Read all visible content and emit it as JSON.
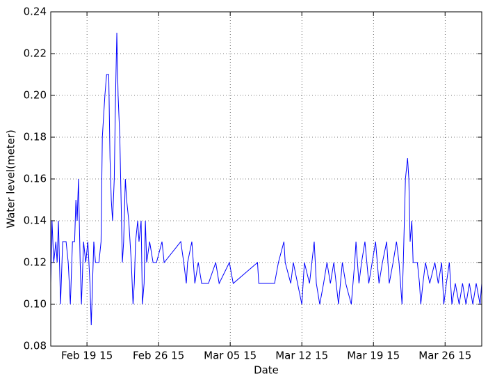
{
  "chart_data": {
    "type": "line",
    "x_label": "Date",
    "y_label": "Water level(meter)",
    "xlim": [
      "2015-02-15T11:00",
      "2015-03-29T14:00"
    ],
    "xticks": [
      {
        "value": "2015-02-19T00:00",
        "label": "Feb 19 15"
      },
      {
        "value": "2015-02-26T00:00",
        "label": "Feb 26 15"
      },
      {
        "value": "2015-03-05T00:00",
        "label": "Mar 05 15"
      },
      {
        "value": "2015-03-12T00:00",
        "label": "Mar 12 15"
      },
      {
        "value": "2015-03-19T00:00",
        "label": "Mar 19 15"
      },
      {
        "value": "2015-03-26T00:00",
        "label": "Mar 26 15"
      }
    ],
    "ylim": [
      0.08,
      0.24
    ],
    "yticks": [
      0.08,
      {
        "value": 0.1,
        "label": "0.10"
      },
      0.12,
      0.14,
      0.16,
      0.18,
      {
        "value": 0.2,
        "label": "0.20"
      },
      0.22,
      0.24
    ],
    "grid": true,
    "x": [
      "2015-02-15T11:00",
      "2015-02-15T14:00",
      "2015-02-15T18:00",
      "2015-02-15T23:00",
      "2015-02-16T02:00",
      "2015-02-16T05:00",
      "2015-02-16T10:00",
      "2015-02-16T15:00",
      "2015-02-16T23:00",
      "2015-02-17T04:00",
      "2015-02-17T09:00",
      "2015-02-17T14:00",
      "2015-02-17T19:00",
      "2015-02-17T22:00",
      "2015-02-18T01:00",
      "2015-02-18T04:00",
      "2015-02-18T08:00",
      "2015-02-18T11:00",
      "2015-02-18T16:00",
      "2015-02-18T21:00",
      "2015-02-19T02:00",
      "2015-02-19T07:00",
      "2015-02-19T10:00",
      "2015-02-19T13:00",
      "2015-02-19T16:00",
      "2015-02-19T20:00",
      "2015-02-20T04:00",
      "2015-02-20T09:00",
      "2015-02-20T12:00",
      "2015-02-20T15:00",
      "2015-02-20T18:00",
      "2015-02-20T22:00",
      "2015-02-21T03:00",
      "2015-02-21T06:00",
      "2015-02-21T09:00",
      "2015-02-21T12:00",
      "2015-02-21T16:00",
      "2015-02-21T19:00",
      "2015-02-21T22:00",
      "2015-02-22T01:00",
      "2015-02-22T05:00",
      "2015-02-22T08:00",
      "2015-02-22T11:00",
      "2015-02-22T14:00",
      "2015-02-22T18:00",
      "2015-02-22T21:00",
      "2015-02-23T02:00",
      "2015-02-23T05:00",
      "2015-02-23T08:00",
      "2015-02-23T12:00",
      "2015-02-23T15:00",
      "2015-02-23T18:00",
      "2015-02-23T23:00",
      "2015-02-24T02:00",
      "2015-02-24T07:00",
      "2015-02-24T10:00",
      "2015-02-24T14:00",
      "2015-02-24T17:00",
      "2015-02-24T20:00",
      "2015-02-25T03:00",
      "2015-02-25T11:00",
      "2015-02-25T19:00",
      "2015-02-26T08:00",
      "2015-02-26T13:00",
      "2015-02-28T04:00",
      "2015-02-28T11:00",
      "2015-02-28T17:00",
      "2015-02-28T20:00",
      "2015-03-01T06:00",
      "2015-03-01T13:00",
      "2015-03-01T21:00",
      "2015-03-02T05:00",
      "2015-03-02T21:00",
      "2015-03-03T14:00",
      "2015-03-03T22:00",
      "2015-03-04T22:00",
      "2015-03-05T07:00",
      "2015-03-07T16:00",
      "2015-03-07T19:00",
      "2015-03-09T08:00",
      "2015-03-09T17:00",
      "2015-03-10T06:00",
      "2015-03-10T09:00",
      "2015-03-10T22:00",
      "2015-03-11T04:00",
      "2015-03-11T14:00",
      "2015-03-12T00:00",
      "2015-03-12T06:00",
      "2015-03-12T18:00",
      "2015-03-13T05:00",
      "2015-03-13T10:00",
      "2015-03-13T18:00",
      "2015-03-14T03:00",
      "2015-03-14T11:00",
      "2015-03-14T19:00",
      "2015-03-15T03:00",
      "2015-03-15T14:00",
      "2015-03-15T23:00",
      "2015-03-16T07:00",
      "2015-03-16T20:00",
      "2015-03-17T04:00",
      "2015-03-17T07:00",
      "2015-03-17T14:00",
      "2015-03-17T20:00",
      "2015-03-18T04:00",
      "2015-03-18T13:00",
      "2015-03-18T21:00",
      "2015-03-19T05:00",
      "2015-03-19T13:00",
      "2015-03-19T21:00",
      "2015-03-20T07:00",
      "2015-03-20T13:00",
      "2015-03-20T22:00",
      "2015-03-21T06:00",
      "2015-03-21T12:00",
      "2015-03-21T19:00",
      "2015-03-21T22:00",
      "2015-03-22T03:00",
      "2015-03-22T08:00",
      "2015-03-22T11:00",
      "2015-03-22T14:00",
      "2015-03-22T18:00",
      "2015-03-22T21:00",
      "2015-03-23T07:00",
      "2015-03-23T12:00",
      "2015-03-23T15:00",
      "2015-03-23T20:00",
      "2015-03-24T02:00",
      "2015-03-24T12:00",
      "2015-03-25T00:00",
      "2015-03-25T08:00",
      "2015-03-25T16:00",
      "2015-03-25T21:00",
      "2015-03-26T03:00",
      "2015-03-26T10:00",
      "2015-03-26T16:00",
      "2015-03-27T00:00",
      "2015-03-27T09:00",
      "2015-03-27T17:00",
      "2015-03-28T01:00",
      "2015-03-28T09:00",
      "2015-03-28T17:00",
      "2015-03-29T01:00",
      "2015-03-29T10:00",
      "2015-03-29T14:00"
    ],
    "series": [
      {
        "color": "#0000ff",
        "values": [
          0.11,
          0.14,
          0.12,
          0.13,
          0.12,
          0.14,
          0.1,
          0.13,
          0.13,
          0.12,
          0.1,
          0.13,
          0.13,
          0.15,
          0.14,
          0.16,
          0.12,
          0.1,
          0.13,
          0.12,
          0.13,
          0.11,
          0.09,
          0.11,
          0.13,
          0.12,
          0.12,
          0.13,
          0.18,
          0.19,
          0.2,
          0.21,
          0.21,
          0.17,
          0.15,
          0.14,
          0.16,
          0.2,
          0.23,
          0.2,
          0.18,
          0.15,
          0.12,
          0.13,
          0.16,
          0.15,
          0.14,
          0.13,
          0.12,
          0.1,
          0.11,
          0.13,
          0.14,
          0.13,
          0.14,
          0.1,
          0.11,
          0.14,
          0.12,
          0.13,
          0.12,
          0.12,
          0.13,
          0.12,
          0.13,
          0.12,
          0.11,
          0.12,
          0.13,
          0.11,
          0.12,
          0.11,
          0.11,
          0.12,
          0.11,
          0.12,
          0.11,
          0.12,
          0.11,
          0.11,
          0.12,
          0.13,
          0.12,
          0.11,
          0.12,
          0.11,
          0.1,
          0.12,
          0.11,
          0.13,
          0.11,
          0.1,
          0.11,
          0.12,
          0.11,
          0.12,
          0.1,
          0.12,
          0.11,
          0.1,
          0.12,
          0.13,
          0.11,
          0.12,
          0.13,
          0.11,
          0.12,
          0.13,
          0.11,
          0.12,
          0.13,
          0.11,
          0.12,
          0.13,
          0.12,
          0.1,
          0.12,
          0.16,
          0.17,
          0.16,
          0.13,
          0.14,
          0.12,
          0.12,
          0.11,
          0.1,
          0.11,
          0.12,
          0.11,
          0.12,
          0.11,
          0.12,
          0.1,
          0.11,
          0.12,
          0.1,
          0.11,
          0.1,
          0.11,
          0.1,
          0.11,
          0.1,
          0.11,
          0.1,
          0.11
        ]
      }
    ]
  }
}
